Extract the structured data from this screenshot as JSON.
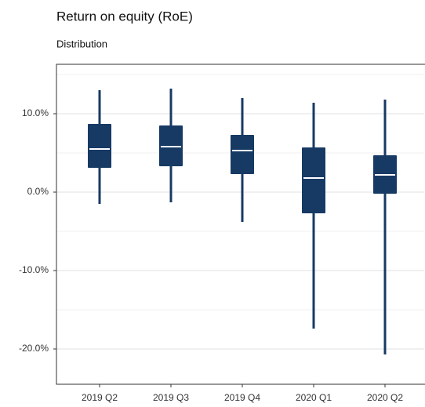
{
  "chart_data": {
    "type": "box",
    "title": "Return on equity (RoE)",
    "subtitle": "Distribution",
    "categories": [
      "2019 Q2",
      "2019 Q3",
      "2019 Q4",
      "2020 Q1",
      "2020 Q2"
    ],
    "color": "#173a64",
    "median_color": "#ffffff",
    "low": [
      -1.5,
      -1.3,
      -3.8,
      -17.4,
      -20.7
    ],
    "q1": [
      3.1,
      3.3,
      2.3,
      -2.7,
      -0.2
    ],
    "median": [
      5.5,
      5.8,
      5.3,
      1.8,
      2.2
    ],
    "q3": [
      8.7,
      8.5,
      7.3,
      5.7,
      4.7
    ],
    "high": [
      13.0,
      13.2,
      12.0,
      11.4,
      11.8
    ],
    "ylim": [
      -24.5,
      16.3
    ],
    "yticks": [
      {
        "value": -20,
        "label": "-20.0%"
      },
      {
        "value": -10,
        "label": "-10.0%"
      },
      {
        "value": 0,
        "label": "0.0%"
      },
      {
        "value": 10,
        "label": "10.0%"
      }
    ],
    "minor_yticks": [
      -15,
      -5,
      5,
      15
    ],
    "grid": true
  }
}
